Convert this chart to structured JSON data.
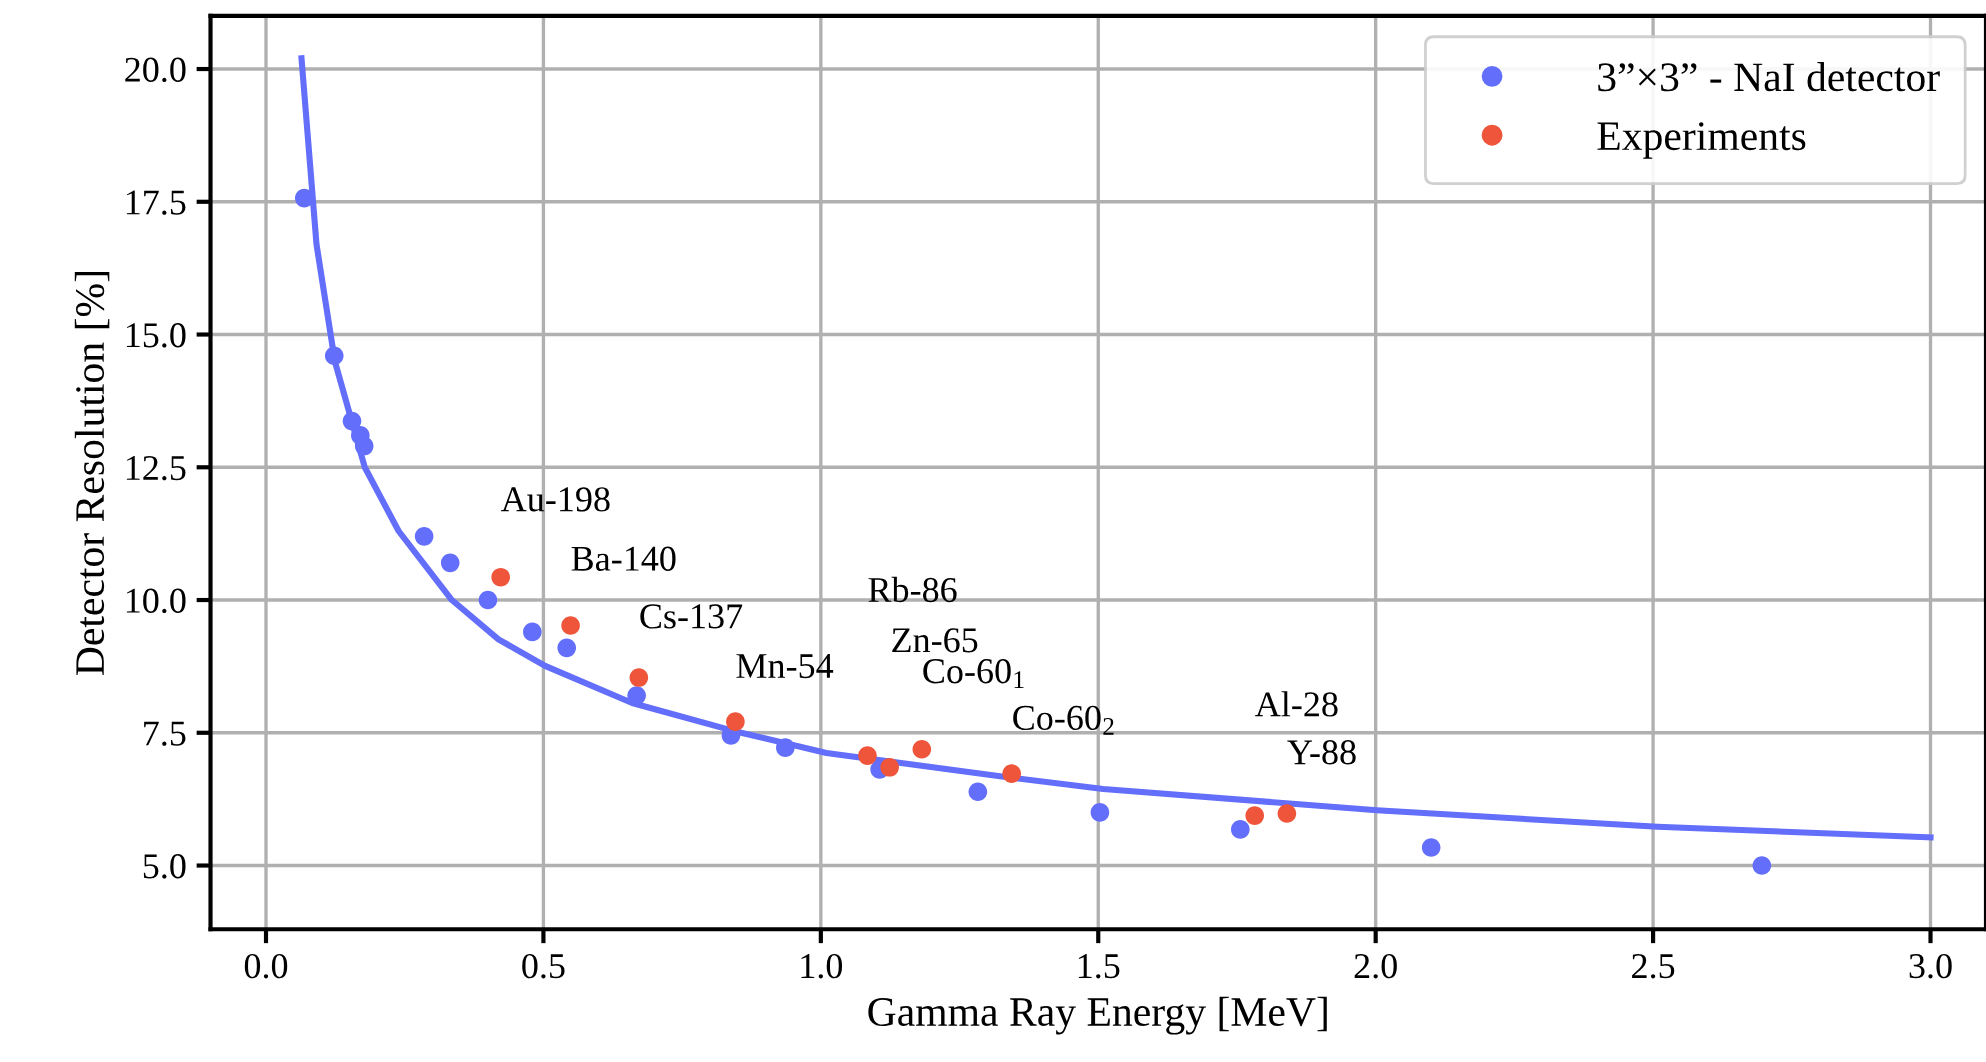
{
  "chart_data": {
    "type": "scatter",
    "xlabel": "Gamma Ray Energy [MeV]",
    "ylabel": "Detector Resolution [%]",
    "xlim": [
      -0.1,
      3.1
    ],
    "ylim": [
      3.8,
      21.0
    ],
    "xticks": [
      {
        "value": 0,
        "label": "0.0"
      },
      {
        "value": 0.5,
        "label": "0.5"
      },
      {
        "value": 1,
        "label": "1.0"
      },
      {
        "value": 1.5,
        "label": "1.5"
      },
      {
        "value": 2,
        "label": "2.0"
      },
      {
        "value": 2.5,
        "label": "2.5"
      },
      {
        "value": 3,
        "label": "3.0"
      }
    ],
    "yticks": [
      {
        "value": 5,
        "label": "5.0"
      },
      {
        "value": 7.5,
        "label": "7.5"
      },
      {
        "value": 10,
        "label": "10.0"
      },
      {
        "value": 12.5,
        "label": "12.5"
      },
      {
        "value": 15,
        "label": "15.0"
      },
      {
        "value": 17.5,
        "label": "17.5"
      },
      {
        "value": 20,
        "label": "20.0"
      }
    ],
    "grid": true,
    "legend": "top right",
    "series": [
      {
        "type": "line",
        "marker": "none",
        "color": "#636efa",
        "x": [
          0.064,
          0.091,
          0.124,
          0.178,
          0.239,
          0.335,
          0.419,
          0.503,
          0.66,
          0.841,
          1.01,
          1.323,
          1.509,
          2.002,
          2.508,
          3.0
        ],
        "values": [
          20.2,
          16.7,
          14.5,
          12.5,
          11.3,
          10.0,
          9.26,
          8.76,
          8.06,
          7.54,
          7.12,
          6.68,
          6.44,
          6.04,
          5.73,
          5.53
        ]
      },
      {
        "marker": "circle",
        "name": "3”×3” - NaI detector",
        "color": "#636efa",
        "x": [
          0.069,
          0.123,
          0.155,
          0.17,
          0.177,
          0.285,
          0.332,
          0.4,
          0.48,
          0.542,
          0.668,
          0.838,
          0.936,
          1.106,
          1.283,
          1.503,
          1.756,
          2.1,
          2.696
        ],
        "values": [
          17.57,
          14.6,
          13.37,
          13.1,
          12.9,
          11.2,
          10.7,
          10.0,
          9.4,
          9.1,
          8.2,
          7.45,
          7.22,
          6.81,
          6.39,
          6.0,
          5.68,
          5.34,
          5.0
        ]
      },
      {
        "marker": "circle",
        "name": "Experiments",
        "color": "#ef553b",
        "x": [
          0.423,
          0.549,
          0.672,
          0.846,
          1.084,
          1.124,
          1.182,
          1.344,
          1.782,
          1.84
        ],
        "values": [
          10.43,
          9.52,
          8.54,
          7.71,
          7.07,
          6.85,
          7.19,
          6.73,
          5.94,
          5.98
        ]
      }
    ],
    "annotations": [
      {
        "text": "Au-198",
        "x": 0.423,
        "y": 10.43
      },
      {
        "text": "Ba-140",
        "x": 0.549,
        "y": 9.52
      },
      {
        "text": "Cs-137",
        "x": 0.672,
        "y": 8.54
      },
      {
        "text": "Mn-54",
        "x": 0.846,
        "y": 7.71
      },
      "Rb-86",
      "Zn-65",
      {
        "text": "Co-60$_{1}$",
        "x": 1.182,
        "y": 7.19
      },
      {
        "text": "Co-60$_{2}$",
        "x": 1.344,
        "y": 6.73
      },
      {
        "text": "Al-28",
        "x": 1.782,
        "y": 5.94
      },
      {
        "text": "Y-88",
        "x": 1.84,
        "y": 5.98
      }
    ]
  }
}
